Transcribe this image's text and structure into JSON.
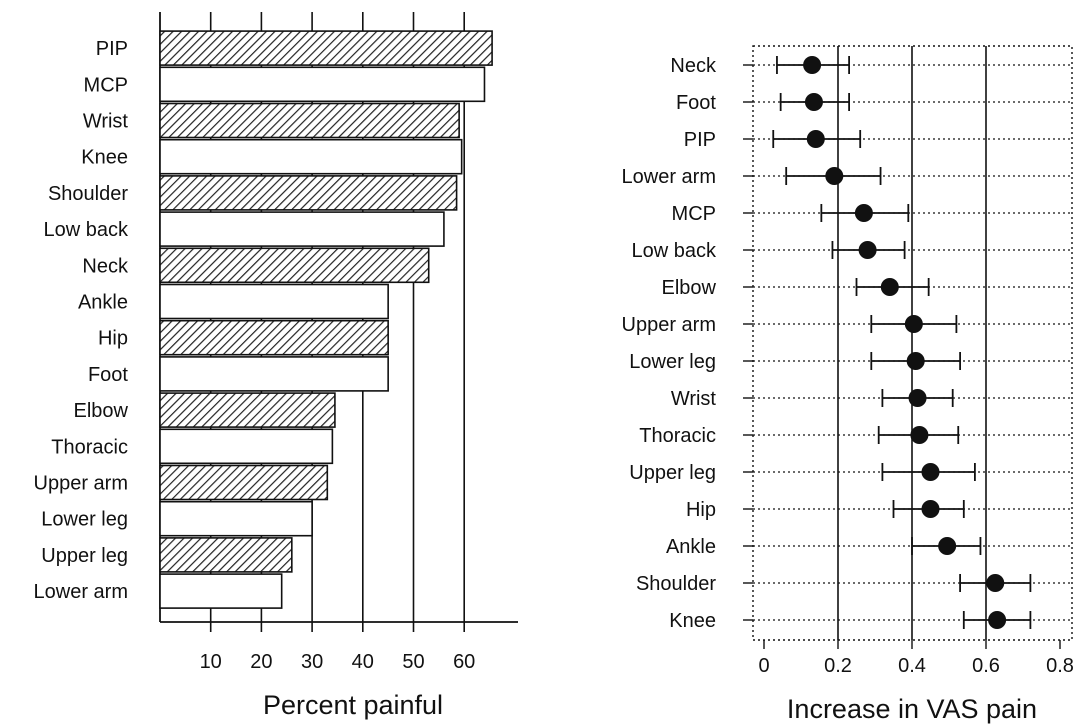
{
  "chart_data": [
    {
      "type": "bar",
      "orientation": "horizontal",
      "xlabel": "Percent painful",
      "ylabel": "",
      "xlim": [
        0,
        70
      ],
      "xticks": [
        10,
        20,
        30,
        40,
        50,
        60
      ],
      "categories": [
        "PIP",
        "MCP",
        "Wrist",
        "Knee",
        "Shoulder",
        "Low back",
        "Neck",
        "Ankle",
        "Hip",
        "Foot",
        "Elbow",
        "Thoracic",
        "Upper arm",
        "Lower leg",
        "Upper leg",
        "Lower arm"
      ],
      "values": [
        65.5,
        64,
        59,
        59.5,
        58.5,
        56,
        53,
        45,
        45,
        45,
        34.5,
        34,
        33,
        30,
        26,
        24
      ],
      "hatched": [
        true,
        false,
        true,
        false,
        true,
        false,
        true,
        false,
        true,
        false,
        true,
        false,
        true,
        false,
        true,
        false
      ],
      "grid": "vertical lines at ticks"
    },
    {
      "type": "scatter",
      "style": "point with error bars",
      "xlabel": "Increase in VAS pain",
      "ylabel": "",
      "xlim": [
        -0.02,
        0.84
      ],
      "xticks": [
        0,
        0.2,
        0.4,
        0.6,
        0.8
      ],
      "xtick_labels": [
        "0",
        "0.2",
        "0.4",
        "0.6",
        "0.8"
      ],
      "categories": [
        "Neck",
        "Foot",
        "PIP",
        "Lower arm",
        "MCP",
        "Low back",
        "Elbow",
        "Upper arm",
        "Lower leg",
        "Wrist",
        "Thoracic",
        "Upper leg",
        "Hip",
        "Ankle",
        "Shoulder",
        "Knee"
      ],
      "values": [
        0.13,
        0.135,
        0.14,
        0.19,
        0.27,
        0.28,
        0.34,
        0.405,
        0.41,
        0.415,
        0.42,
        0.45,
        0.45,
        0.495,
        0.625,
        0.63
      ],
      "lower": [
        0.035,
        0.045,
        0.025,
        0.06,
        0.155,
        0.185,
        0.25,
        0.29,
        0.29,
        0.32,
        0.31,
        0.32,
        0.35,
        0.4,
        0.53,
        0.54
      ],
      "upper": [
        0.23,
        0.23,
        0.26,
        0.315,
        0.39,
        0.38,
        0.445,
        0.52,
        0.53,
        0.51,
        0.525,
        0.57,
        0.54,
        0.585,
        0.72,
        0.72
      ],
      "grid": "dotted horizontal lines, solid vertical lines at 0.2, 0.4, 0.6"
    }
  ]
}
